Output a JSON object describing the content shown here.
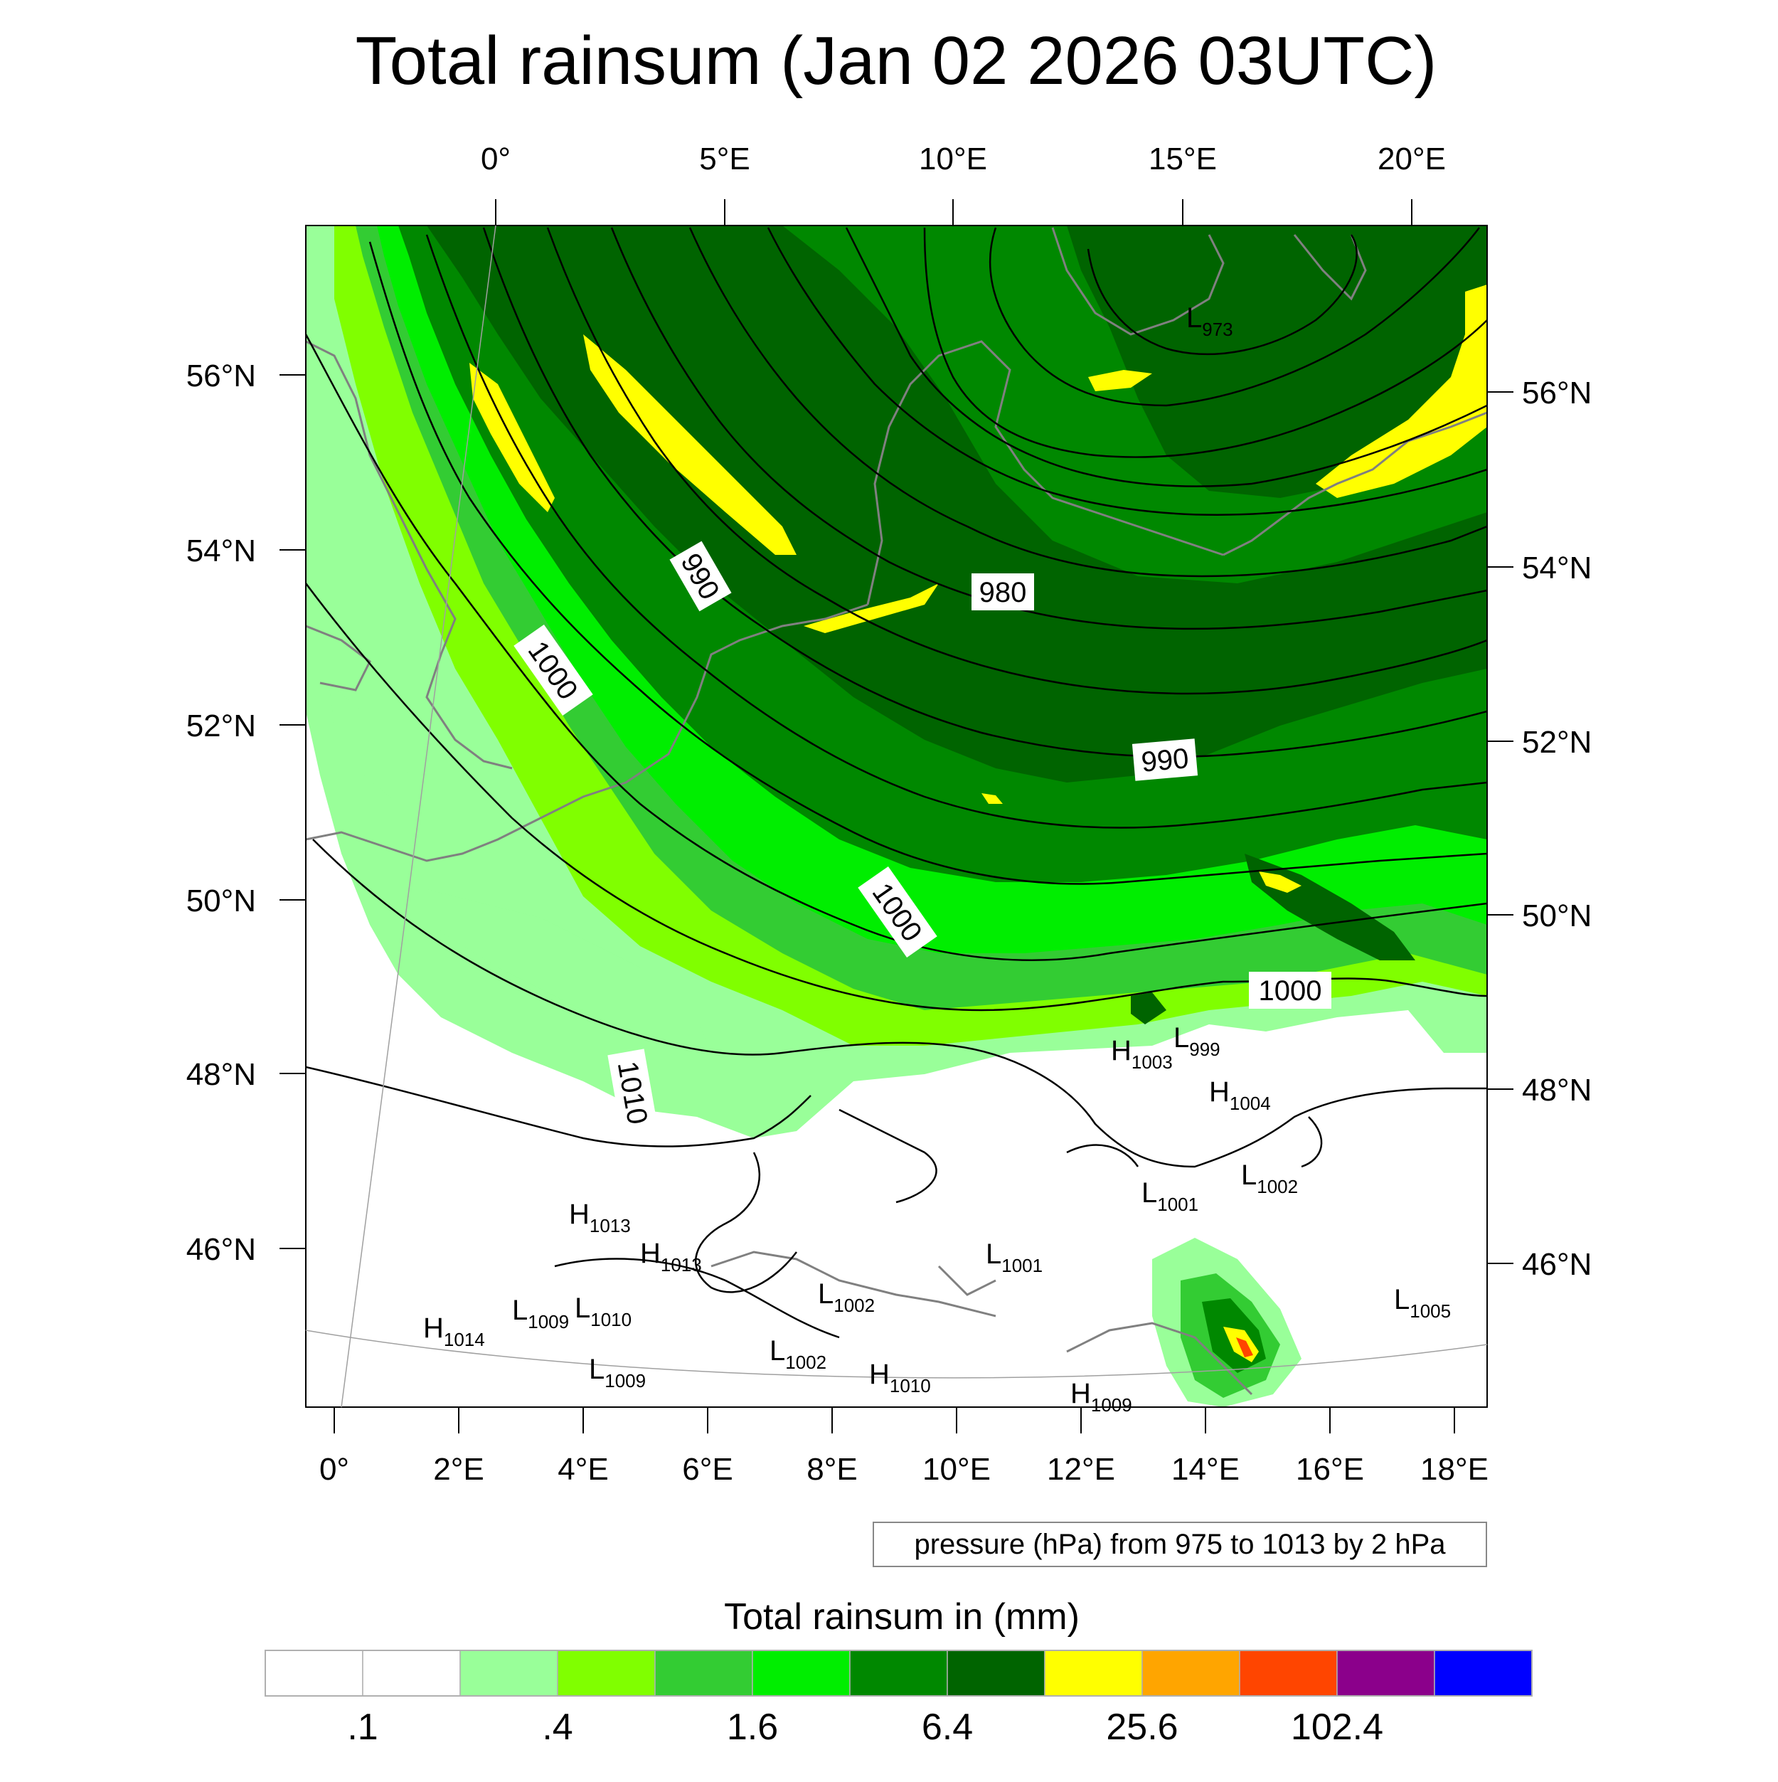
{
  "title": "Total rainsum (Jan 02 2026 03UTC)",
  "top_lon_ticks": [
    "0°",
    "5°E",
    "10°E",
    "15°E",
    "20°E"
  ],
  "bottom_lon_ticks": [
    "0°",
    "2°E",
    "4°E",
    "6°E",
    "8°E",
    "10°E",
    "12°E",
    "14°E",
    "16°E",
    "18°E"
  ],
  "left_lat_ticks": [
    "56°N",
    "54°N",
    "52°N",
    "50°N",
    "48°N",
    "46°N"
  ],
  "right_lat_ticks": [
    "56°N",
    "54°N",
    "52°N",
    "50°N",
    "48°N",
    "46°N"
  ],
  "contour_note": "pressure (hPa) from 975 to 1013 by 2 hPa",
  "isobar_labels": [
    "990",
    "980",
    "1000",
    "990",
    "1000",
    "1000",
    "1010"
  ],
  "pressure_centers": [
    {
      "kind": "L",
      "value": "973"
    },
    {
      "kind": "H",
      "value": "1003"
    },
    {
      "kind": "L",
      "value": "999"
    },
    {
      "kind": "H",
      "value": "1004"
    },
    {
      "kind": "L",
      "value": "1002"
    },
    {
      "kind": "L",
      "value": "1001"
    },
    {
      "kind": "H",
      "value": "1013"
    },
    {
      "kind": "H",
      "value": "1013"
    },
    {
      "kind": "L",
      "value": "1002"
    },
    {
      "kind": "L",
      "value": "1001"
    },
    {
      "kind": "L",
      "value": "1009"
    },
    {
      "kind": "L",
      "value": "1010"
    },
    {
      "kind": "H",
      "value": "1014"
    },
    {
      "kind": "L",
      "value": "1009"
    },
    {
      "kind": "L",
      "value": "1002"
    },
    {
      "kind": "H",
      "value": "1010"
    },
    {
      "kind": "H",
      "value": "1009"
    },
    {
      "kind": "L",
      "value": "1005"
    }
  ],
  "colorbar": {
    "title": "Total rainsum in (mm)",
    "labels": [
      ".1",
      ".4",
      "1.6",
      "6.4",
      "25.6",
      "102.4"
    ],
    "colors": [
      "#ffffff",
      "#ffffff",
      "#99ff99",
      "#80ff00",
      "#33cc33",
      "#00ee00",
      "#008800",
      "#006400",
      "#ffff00",
      "#ffa500",
      "#ff4500",
      "#8b008b",
      "#0000ff"
    ]
  },
  "colors": {
    "light_green": "#99ff99",
    "lime": "#80ff00",
    "medium_green": "#33cc33",
    "bright_green": "#00ee00",
    "green": "#008800",
    "dark_green": "#006400",
    "yellow": "#ffff00",
    "orange": "#ffa500",
    "red": "#ff4500",
    "coastline": "#808080"
  }
}
